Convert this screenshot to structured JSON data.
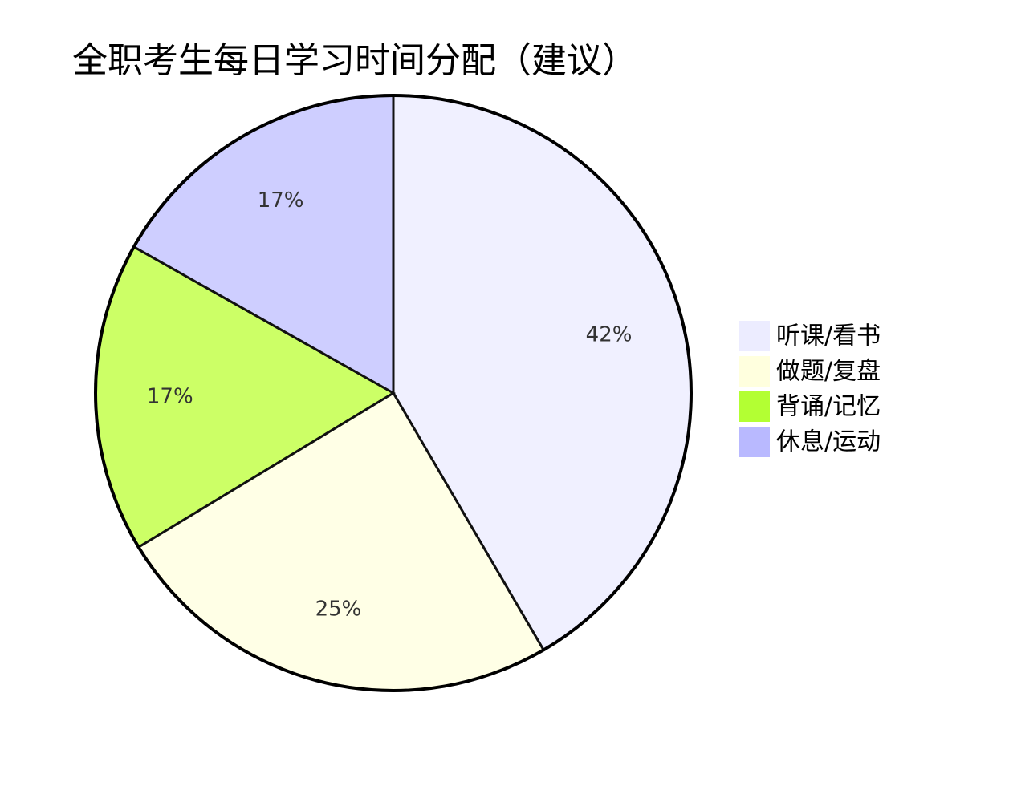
{
  "chart_data": {
    "type": "pie",
    "title": "全职考生每日学习时间分配（建议）",
    "legend_position": "right",
    "slices": [
      {
        "name": "听课/看书",
        "value": 42,
        "label": "42%",
        "color": "#f0f0ff",
        "legend_color": "#ececff"
      },
      {
        "name": "做题/复盘",
        "value": 25,
        "label": "25%",
        "color": "#ffffe6",
        "legend_color": "#ffffde"
      },
      {
        "name": "背诵/记忆",
        "value": 17,
        "label": "17%",
        "color": "#ccff66",
        "legend_color": "#b3ff33"
      },
      {
        "name": "休息/运动",
        "value": 17,
        "label": "17%",
        "color": "#ceceff",
        "legend_color": "#b9b9ff"
      }
    ]
  }
}
